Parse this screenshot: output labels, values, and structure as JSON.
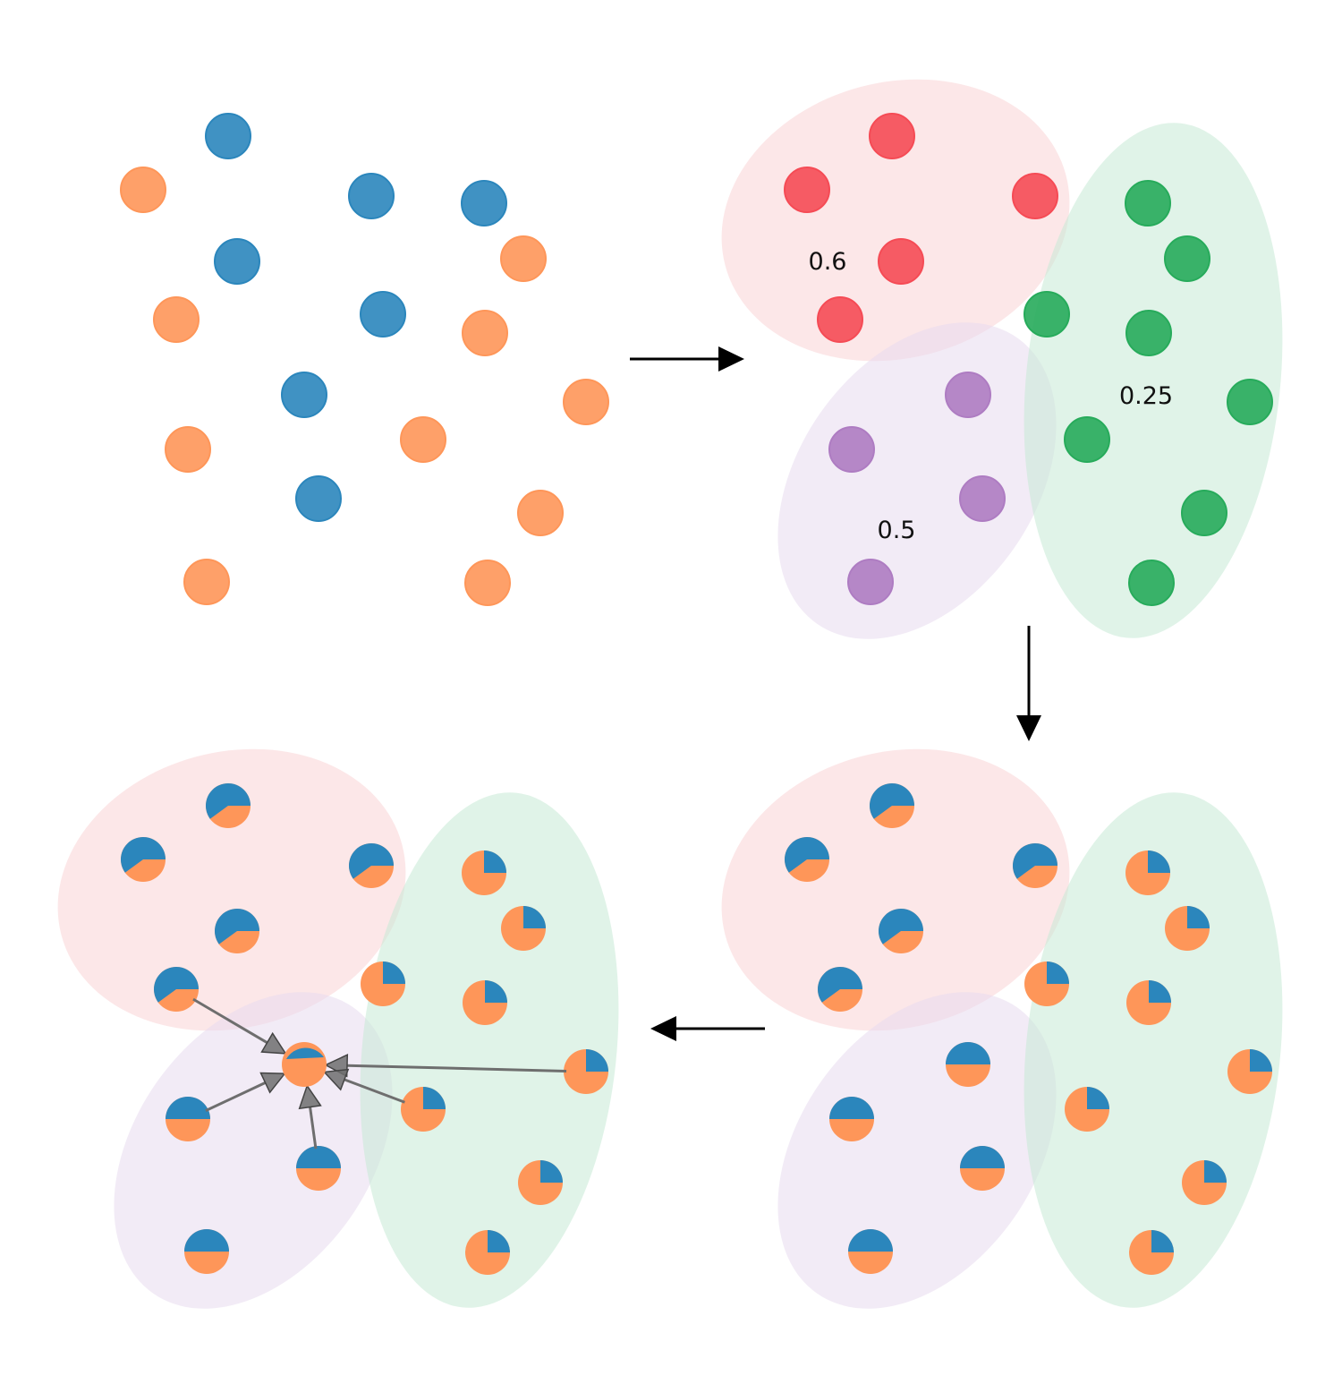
{
  "colors": {
    "blue": "#2b86bc",
    "orange": "#fe9659",
    "red": "#f54b55",
    "green": "#27ab5b",
    "purple": "#ae7cc2",
    "red_region": "#f9d3d5",
    "green_region": "#c6ead6",
    "purple_region": "#e8dbee",
    "arrow": "#000000",
    "flow_arrow": "#6e6e6e"
  },
  "clusters": {
    "red": {
      "label": "0.6",
      "pie_blue_fraction": 0.6
    },
    "purple": {
      "label": "0.5",
      "pie_blue_fraction": 0.5
    },
    "green": {
      "label": "0.25",
      "pie_blue_fraction": 0.25
    }
  },
  "points": [
    {
      "id": 0,
      "cls": "blue",
      "cluster": "red"
    },
    {
      "id": 1,
      "cls": "orange",
      "cluster": "red"
    },
    {
      "id": 2,
      "cls": "blue",
      "cluster": "red"
    },
    {
      "id": 3,
      "cls": "blue",
      "cluster": "green"
    },
    {
      "id": 4,
      "cls": "blue",
      "cluster": "red"
    },
    {
      "id": 5,
      "cls": "orange",
      "cluster": "green"
    },
    {
      "id": 6,
      "cls": "orange",
      "cluster": "red"
    },
    {
      "id": 7,
      "cls": "blue",
      "cluster": "green"
    },
    {
      "id": 8,
      "cls": "orange",
      "cluster": "green"
    },
    {
      "id": 9,
      "cls": "blue",
      "cluster": "purple"
    },
    {
      "id": 10,
      "cls": "orange",
      "cluster": "green"
    },
    {
      "id": 11,
      "cls": "orange",
      "cluster": "purple"
    },
    {
      "id": 12,
      "cls": "orange",
      "cluster": "green"
    },
    {
      "id": 13,
      "cls": "blue",
      "cluster": "purple"
    },
    {
      "id": 14,
      "cls": "orange",
      "cluster": "green"
    },
    {
      "id": 15,
      "cls": "orange",
      "cluster": "purple"
    },
    {
      "id": 16,
      "cls": "orange",
      "cluster": "green"
    }
  ],
  "query": {
    "neighbors": [
      6,
      11,
      13,
      10,
      12
    ]
  }
}
